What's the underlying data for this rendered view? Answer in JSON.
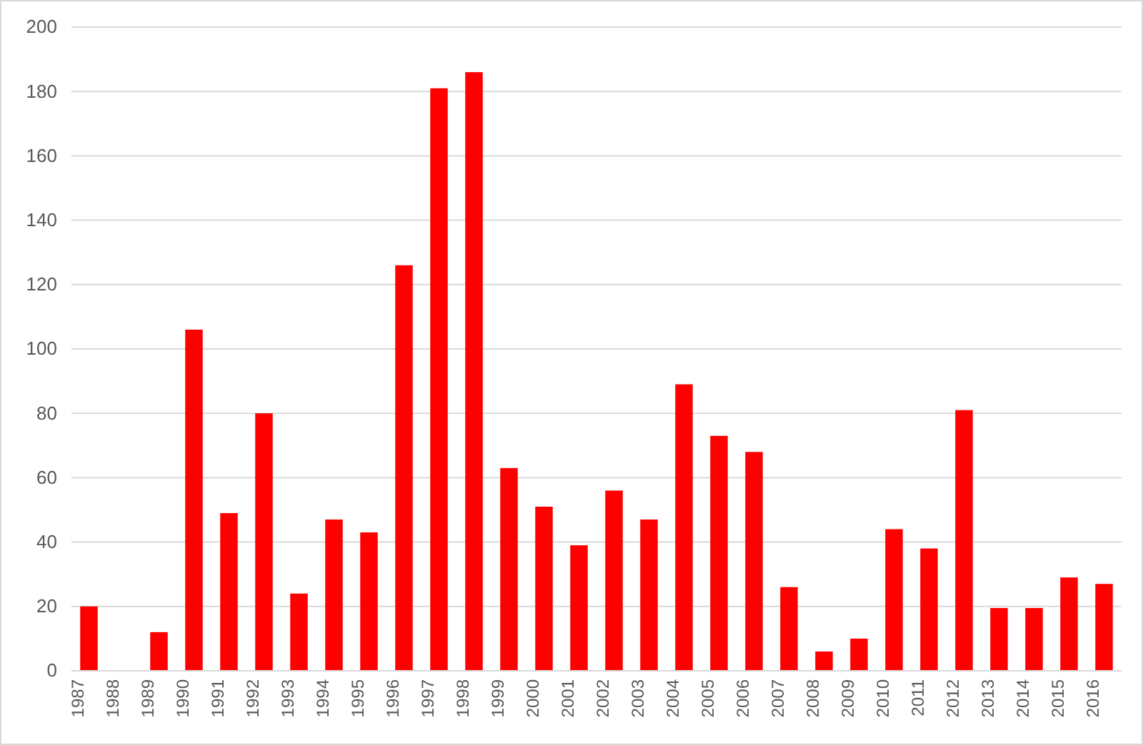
{
  "chart_data": {
    "type": "bar",
    "categories": [
      "1987",
      "1988",
      "1989",
      "1990",
      "1991",
      "1992",
      "1993",
      "1994",
      "1995",
      "1996",
      "1997",
      "1998",
      "1999",
      "2000",
      "2001",
      "2002",
      "2003",
      "2004",
      "2005",
      "2006",
      "2007",
      "2008",
      "2009",
      "2010",
      "2011",
      "2012",
      "2013",
      "2014",
      "2015",
      "2016"
    ],
    "values": [
      20,
      0,
      12,
      106,
      49,
      80,
      24,
      47,
      43,
      126,
      181,
      186,
      63,
      51,
      39,
      56,
      47,
      89,
      73,
      68,
      26,
      6,
      10,
      44,
      38,
      81,
      19.5,
      19.5,
      29,
      27
    ],
    "color": "#ff0000",
    "ylim": [
      0,
      200
    ],
    "yticks": [
      0,
      20,
      40,
      60,
      80,
      100,
      120,
      140,
      160,
      180,
      200
    ],
    "grid": "y"
  }
}
